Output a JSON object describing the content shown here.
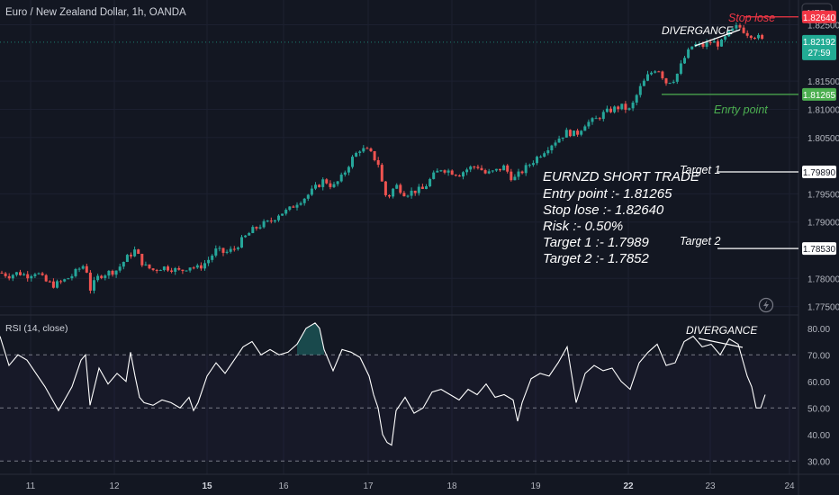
{
  "header": {
    "symbol_title": "Euro / New Zealand Dollar, 1h, OANDA",
    "currency_button": "NZD"
  },
  "price_axis": {
    "ticks": [
      "1.82500",
      "1.81500",
      "1.81000",
      "1.80500",
      "1.79500",
      "1.79000",
      "1.78000",
      "1.77500"
    ],
    "current_price": "1.82192",
    "countdown": "27:59",
    "stop_label": "1.82640",
    "entry_label": "1.81265",
    "target1_label": "1.79890",
    "target2_label": "1.78530"
  },
  "annotations": {
    "divergence_price": "DIVERGANCE",
    "stop_loss": "Stop lose",
    "entry_point": "Enrty point",
    "target1": "Target 1",
    "target2": "Target 2",
    "trade_title": "EURNZD SHORT TRADE",
    "trade_lines": [
      "Entry point :- 1.81265",
      "Stop lose :- 1.82640",
      "Risk :- 0.50%",
      "Target 1 :- 1.7989",
      "Target 2 :- 1.7852"
    ],
    "divergence_rsi": "DIVERGANCE"
  },
  "indicator": {
    "title": "RSI (14, close)",
    "ticks": [
      "80.00",
      "70.00",
      "60.00",
      "50.00",
      "40.00",
      "30.00"
    ]
  },
  "time_axis": {
    "labels": [
      "11",
      "12",
      "15",
      "16",
      "17",
      "18",
      "19",
      "22",
      "23",
      "24"
    ]
  },
  "colors": {
    "background": "#131722",
    "bull": "#26a69a",
    "bear": "#ef5350",
    "stop_line": "#f23645",
    "entry_line": "#4caf50",
    "target_line": "#ffffff",
    "rsi_line": "#ffffff",
    "current_price_tag": "#22ab94"
  },
  "chart_data": [
    {
      "type": "candlestick",
      "title": "Euro / New Zealand Dollar, 1h, OANDA",
      "ylim": [
        1.7735,
        1.8294
      ],
      "levels": {
        "stop_loss": 1.8264,
        "entry": 1.81265,
        "target_1": 1.7989,
        "target_2": 1.7853,
        "current": 1.82192
      },
      "close_path_approx": [
        [
          0,
          1.781
        ],
        [
          10,
          1.7805
        ],
        [
          20,
          1.781
        ],
        [
          30,
          1.7805
        ],
        [
          40,
          1.7812
        ],
        [
          50,
          1.7795
        ],
        [
          60,
          1.7788
        ],
        [
          70,
          1.7795
        ],
        [
          80,
          1.7805
        ],
        [
          90,
          1.782
        ],
        [
          95,
          1.7825
        ],
        [
          100,
          1.778
        ],
        [
          110,
          1.7805
        ],
        [
          120,
          1.781
        ],
        [
          130,
          1.7815
        ],
        [
          140,
          1.7835
        ],
        [
          150,
          1.785
        ],
        [
          160,
          1.7822
        ],
        [
          170,
          1.7815
        ],
        [
          180,
          1.782
        ],
        [
          190,
          1.7818
        ],
        [
          200,
          1.7812
        ],
        [
          210,
          1.7822
        ],
        [
          220,
          1.7818
        ],
        [
          230,
          1.783
        ],
        [
          240,
          1.785
        ],
        [
          250,
          1.7845
        ],
        [
          260,
          1.7852
        ],
        [
          270,
          1.787
        ],
        [
          280,
          1.7885
        ],
        [
          290,
          1.7895
        ],
        [
          300,
          1.79
        ],
        [
          310,
          1.7915
        ],
        [
          320,
          1.792
        ],
        [
          330,
          1.7935
        ],
        [
          340,
          1.7945
        ],
        [
          350,
          1.796
        ],
        [
          360,
          1.7975
        ],
        [
          370,
          1.7962
        ],
        [
          380,
          1.798
        ],
        [
          390,
          1.801
        ],
        [
          400,
          1.803
        ],
        [
          410,
          1.8025
        ],
        [
          420,
          1.8005
        ],
        [
          425,
          1.7965
        ],
        [
          430,
          1.794
        ],
        [
          435,
          1.7955
        ],
        [
          440,
          1.7965
        ],
        [
          450,
          1.795
        ],
        [
          460,
          1.7955
        ],
        [
          470,
          1.7958
        ],
        [
          480,
          1.798
        ],
        [
          490,
          1.7995
        ],
        [
          500,
          1.799
        ],
        [
          510,
          1.7985
        ],
        [
          520,
          1.7995
        ],
        [
          530,
          1.8
        ],
        [
          540,
          1.7985
        ],
        [
          550,
          1.799
        ],
        [
          560,
          1.7998
        ],
        [
          570,
          1.7975
        ],
        [
          580,
          1.799
        ],
        [
          590,
          1.8005
        ],
        [
          600,
          1.802
        ],
        [
          610,
          1.8035
        ],
        [
          620,
          1.8048
        ],
        [
          630,
          1.806
        ],
        [
          640,
          1.8055
        ],
        [
          650,
          1.8075
        ],
        [
          660,
          1.808
        ],
        [
          670,
          1.8092
        ],
        [
          680,
          1.81
        ],
        [
          690,
          1.8105
        ],
        [
          700,
          1.8098
        ],
        [
          710,
          1.8135
        ],
        [
          720,
          1.816
        ],
        [
          730,
          1.8175
        ],
        [
          740,
          1.8148
        ],
        [
          750,
          1.8155
        ],
        [
          760,
          1.819
        ],
        [
          770,
          1.8215
        ],
        [
          780,
          1.8212
        ],
        [
          790,
          1.822
        ],
        [
          800,
          1.8215
        ],
        [
          810,
          1.8235
        ],
        [
          820,
          1.8248
        ],
        [
          830,
          1.8235
        ],
        [
          840,
          1.823
        ],
        [
          850,
          1.8218
        ]
      ]
    },
    {
      "type": "line",
      "title": "RSI (14, close)",
      "ylim": [
        25,
        85
      ],
      "reference_lines": [
        70,
        50,
        30
      ],
      "points": [
        [
          0,
          77
        ],
        [
          10,
          66
        ],
        [
          20,
          70
        ],
        [
          30,
          68
        ],
        [
          40,
          63
        ],
        [
          50,
          58
        ],
        [
          60,
          52
        ],
        [
          65,
          49
        ],
        [
          70,
          52
        ],
        [
          80,
          58
        ],
        [
          90,
          68
        ],
        [
          95,
          70
        ],
        [
          100,
          51
        ],
        [
          110,
          65
        ],
        [
          120,
          59
        ],
        [
          130,
          63
        ],
        [
          140,
          60
        ],
        [
          145,
          71
        ],
        [
          150,
          62
        ],
        [
          155,
          54
        ],
        [
          160,
          52
        ],
        [
          170,
          51
        ],
        [
          180,
          53
        ],
        [
          190,
          52
        ],
        [
          200,
          50
        ],
        [
          210,
          54
        ],
        [
          215,
          49
        ],
        [
          220,
          52
        ],
        [
          230,
          62
        ],
        [
          240,
          67
        ],
        [
          250,
          63
        ],
        [
          260,
          68
        ],
        [
          270,
          73
        ],
        [
          280,
          75
        ],
        [
          290,
          70
        ],
        [
          300,
          72
        ],
        [
          310,
          70
        ],
        [
          320,
          71
        ],
        [
          330,
          74
        ],
        [
          340,
          80
        ],
        [
          345,
          81
        ],
        [
          350,
          82
        ],
        [
          355,
          80
        ],
        [
          360,
          72
        ],
        [
          370,
          64
        ],
        [
          380,
          72
        ],
        [
          390,
          71
        ],
        [
          400,
          69
        ],
        [
          410,
          62
        ],
        [
          415,
          55
        ],
        [
          420,
          50
        ],
        [
          425,
          40
        ],
        [
          430,
          37
        ],
        [
          435,
          36
        ],
        [
          440,
          49
        ],
        [
          450,
          54
        ],
        [
          460,
          48
        ],
        [
          470,
          50
        ],
        [
          480,
          56
        ],
        [
          490,
          57
        ],
        [
          500,
          55
        ],
        [
          510,
          53
        ],
        [
          520,
          57
        ],
        [
          530,
          55
        ],
        [
          540,
          59
        ],
        [
          550,
          54
        ],
        [
          560,
          55
        ],
        [
          570,
          53
        ],
        [
          575,
          45
        ],
        [
          580,
          52
        ],
        [
          590,
          61
        ],
        [
          600,
          63
        ],
        [
          610,
          62
        ],
        [
          620,
          67
        ],
        [
          630,
          73
        ],
        [
          640,
          52
        ],
        [
          650,
          63
        ],
        [
          660,
          66
        ],
        [
          670,
          64
        ],
        [
          680,
          65
        ],
        [
          690,
          60
        ],
        [
          700,
          57
        ],
        [
          710,
          67
        ],
        [
          720,
          71
        ],
        [
          730,
          74
        ],
        [
          740,
          66
        ],
        [
          750,
          67
        ],
        [
          760,
          75
        ],
        [
          770,
          77
        ],
        [
          780,
          73
        ],
        [
          790,
          74
        ],
        [
          800,
          70
        ],
        [
          810,
          76
        ],
        [
          820,
          74
        ],
        [
          830,
          62
        ],
        [
          835,
          58
        ],
        [
          840,
          50
        ],
        [
          845,
          50
        ],
        [
          850,
          55
        ]
      ]
    }
  ]
}
